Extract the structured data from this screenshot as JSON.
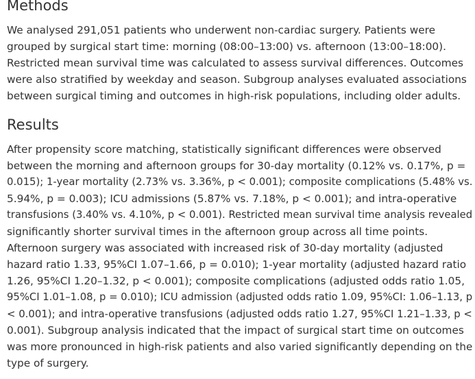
{
  "methods": {
    "heading": "Methods",
    "lines": [
      "We analysed 291,051 patients who underwent non-cardiac surgery. Patients were",
      "grouped by surgical start time: morning (08:00–13:00) vs. afternoon (13:00–18:00).",
      "Restricted mean survival time was calculated to assess survival differences. Outcomes",
      "were also stratified by weekday and season. Subgroup analyses evaluated associations",
      "between surgical timing and outcomes in high-risk populations, including older adults."
    ]
  },
  "results": {
    "heading": "Results",
    "lines": [
      "After propensity score matching, statistically significant differences were observed",
      "between the morning and afternoon groups for 30-day mortality (0.12% vs. 0.17%, p =",
      "0.015); 1-year mortality (2.73% vs. 3.36%, p < 0.001); composite complications (5.48% vs.",
      "5.94%, p = 0.003); ICU admissions (5.87% vs. 7.18%, p < 0.001); and intra-operative",
      "transfusions (3.40% vs. 4.10%, p < 0.001). Restricted mean survival time analysis revealed",
      "significantly shorter survival times in the afternoon group across all time points.",
      "Afternoon surgery was associated with increased risk of 30-day mortality (adjusted",
      "hazard ratio 1.33, 95%CI 1.07–1.66, p = 0.010); 1-year mortality (adjusted hazard ratio",
      "1.26, 95%CI 1.20–1.32, p < 0.001); composite complications (adjusted odds ratio 1.05,",
      "95%CI 1.01–1.08, p = 0.010); ICU admission (adjusted odds ratio 1.09, 95%CI: 1.06–1.13, p",
      "< 0.001); and intra-operative transfusions (adjusted odds ratio 1.27, 95%CI 1.21–1.33, p <",
      "0.001). Subgroup analysis indicated that the impact of surgical start time on outcomes",
      "was more pronounced in high-risk patients and also varied significantly depending on the",
      "type of surgery."
    ]
  }
}
